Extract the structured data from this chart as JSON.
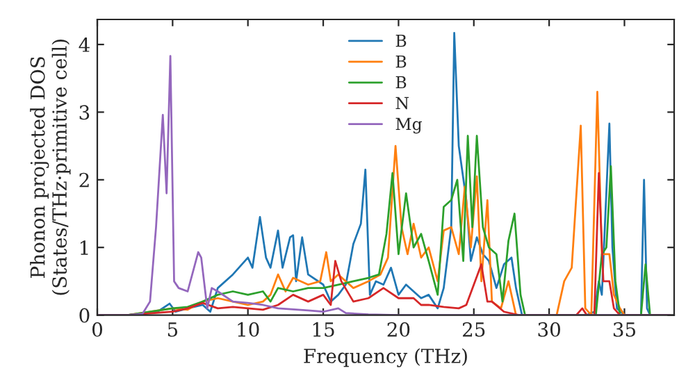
{
  "chart_data": {
    "type": "line",
    "xlabel": "Frequency (THz)",
    "ylabel": "Phonon projected DOS\n(States/THz·primitive cell)",
    "xlim": [
      0,
      38.3
    ],
    "ylim": [
      0,
      4.37
    ],
    "xticks": [
      0,
      5,
      10,
      15,
      20,
      25,
      30,
      35
    ],
    "yticks": [
      0,
      1,
      2,
      3,
      4
    ],
    "grid": false,
    "legend": "top",
    "series": [
      {
        "name": "B",
        "color": "#1f77b4",
        "x": [
          0,
          2,
          4,
          4.8,
          5.2,
          6,
          7,
          7.5,
          8,
          9,
          10,
          10.3,
          10.8,
          11.2,
          11.5,
          12,
          12.3,
          12.8,
          13,
          13.2,
          13.6,
          14,
          15,
          15.5,
          16,
          16.5,
          17,
          17.5,
          17.8,
          18.1,
          18.5,
          19,
          19.5,
          20,
          20.5,
          21,
          21.5,
          22,
          22.6,
          23,
          23.5,
          23.7,
          24,
          24.5,
          24.8,
          25.2,
          25.6,
          26,
          26.5,
          27,
          27.5,
          27.8,
          28.2,
          32.5,
          33,
          33.3,
          33.5,
          34,
          34.2,
          34.5,
          35,
          36.1,
          36.3,
          36.5,
          36.7,
          38
        ],
        "values": [
          0,
          0,
          0.05,
          0.17,
          0.05,
          0.1,
          0.15,
          0.05,
          0.4,
          0.6,
          0.85,
          0.7,
          1.45,
          0.85,
          0.7,
          1.25,
          0.7,
          1.15,
          1.18,
          0.5,
          1.15,
          0.6,
          0.45,
          0.2,
          0.3,
          0.45,
          1.05,
          1.35,
          2.15,
          0.3,
          0.5,
          0.45,
          0.7,
          0.3,
          0.45,
          0.35,
          0.25,
          0.3,
          0.1,
          0.4,
          1.3,
          4.17,
          2.5,
          1.7,
          0.8,
          1.15,
          0.9,
          0.8,
          0.4,
          0.75,
          0.85,
          0.4,
          0,
          0,
          0.05,
          0.5,
          0.3,
          2.83,
          1.0,
          0.1,
          0,
          0,
          2.0,
          0.1,
          0,
          0
        ]
      },
      {
        "name": "B",
        "color": "#ff7f0e",
        "x": [
          0,
          2,
          5,
          6,
          7,
          8,
          9,
          10,
          11,
          11.5,
          12,
          12.5,
          13,
          14,
          14.8,
          15.2,
          15.5,
          16,
          17,
          18,
          18.8,
          19.3,
          19.8,
          20.2,
          20.6,
          21,
          21.5,
          22,
          22.6,
          23,
          23.5,
          24,
          24.4,
          24.8,
          25.2,
          25.5,
          25.9,
          26.2,
          26.8,
          27.3,
          27.8,
          30.5,
          31,
          31.5,
          32.1,
          32.4,
          32.8,
          33.2,
          33.5,
          34,
          34.3,
          34.7,
          35,
          38
        ],
        "values": [
          0,
          0,
          0.1,
          0.08,
          0.2,
          0.25,
          0.2,
          0.15,
          0.2,
          0.3,
          0.6,
          0.35,
          0.55,
          0.45,
          0.5,
          0.93,
          0.5,
          0.6,
          0.4,
          0.5,
          0.6,
          0.85,
          2.5,
          1.3,
          0.9,
          1.35,
          0.85,
          1.0,
          0.5,
          1.25,
          1.3,
          0.9,
          1.9,
          1.0,
          2.05,
          0.5,
          1.7,
          0.2,
          0.1,
          0.5,
          0,
          0,
          0.5,
          0.7,
          2.8,
          0.1,
          0,
          3.3,
          0.9,
          0.9,
          0.3,
          0.1,
          0,
          0
        ]
      },
      {
        "name": "B",
        "color": "#2ca02c",
        "x": [
          0,
          2,
          5,
          6,
          7,
          8,
          9,
          10,
          11,
          11.5,
          12,
          13,
          14,
          15,
          16,
          17,
          18,
          18.7,
          19.2,
          19.6,
          20,
          20.5,
          21,
          21.5,
          22,
          22.6,
          23,
          23.5,
          23.9,
          24.3,
          24.6,
          24.9,
          25.2,
          25.6,
          26,
          26.5,
          26.9,
          27.3,
          27.7,
          28.1,
          28.4,
          33.1,
          33.5,
          33.8,
          34.1,
          34.4,
          34.7,
          36.1,
          36.4,
          36.7,
          38
        ],
        "values": [
          0,
          0,
          0.1,
          0.12,
          0.2,
          0.3,
          0.35,
          0.3,
          0.35,
          0.2,
          0.4,
          0.35,
          0.4,
          0.4,
          0.45,
          0.5,
          0.55,
          0.6,
          1.2,
          2.1,
          0.9,
          1.8,
          1.0,
          1.2,
          0.8,
          0.3,
          1.6,
          1.7,
          2.0,
          0.8,
          2.65,
          1.3,
          2.65,
          1.3,
          1.0,
          0.9,
          0.2,
          1.1,
          1.5,
          0.3,
          0,
          0,
          0.9,
          1.0,
          2.2,
          0.5,
          0,
          0,
          0.75,
          0,
          0
        ]
      },
      {
        "name": "N",
        "color": "#d62728",
        "x": [
          0,
          2,
          5,
          6,
          7,
          8,
          9,
          10,
          11,
          12,
          13,
          14,
          15,
          15.5,
          15.8,
          16.2,
          17,
          18,
          19,
          20,
          21,
          21.5,
          22,
          23,
          24,
          24.5,
          25,
          25.5,
          25.9,
          26.2,
          27,
          28,
          31.8,
          32.2,
          32.5,
          33,
          33.3,
          33.6,
          34,
          34.3,
          34.7,
          38
        ],
        "values": [
          0,
          0,
          0.05,
          0.1,
          0.18,
          0.1,
          0.12,
          0.1,
          0.08,
          0.15,
          0.3,
          0.2,
          0.3,
          0.15,
          0.8,
          0.5,
          0.2,
          0.25,
          0.4,
          0.25,
          0.25,
          0.15,
          0.15,
          0.12,
          0.1,
          0.15,
          0.45,
          0.75,
          0.2,
          0.2,
          0.05,
          0,
          0,
          0.1,
          0,
          0,
          2.1,
          0.5,
          0.5,
          0.1,
          0,
          0
        ]
      },
      {
        "name": "Mg",
        "color": "#9467bd",
        "x": [
          0,
          2,
          3,
          3.5,
          3.9,
          4.35,
          4.6,
          4.85,
          5.1,
          5.4,
          6.0,
          6.7,
          6.9,
          7.3,
          7.6,
          8.0,
          9,
          10,
          11,
          12,
          14,
          15,
          16,
          16.5,
          18,
          20,
          38
        ],
        "values": [
          0,
          0,
          0.02,
          0.2,
          1.3,
          2.96,
          1.8,
          3.83,
          0.5,
          0.4,
          0.35,
          0.93,
          0.85,
          0.1,
          0.4,
          0.35,
          0.2,
          0.18,
          0.15,
          0.1,
          0.07,
          0.05,
          0.1,
          0.03,
          0.01,
          0,
          0
        ]
      }
    ]
  }
}
